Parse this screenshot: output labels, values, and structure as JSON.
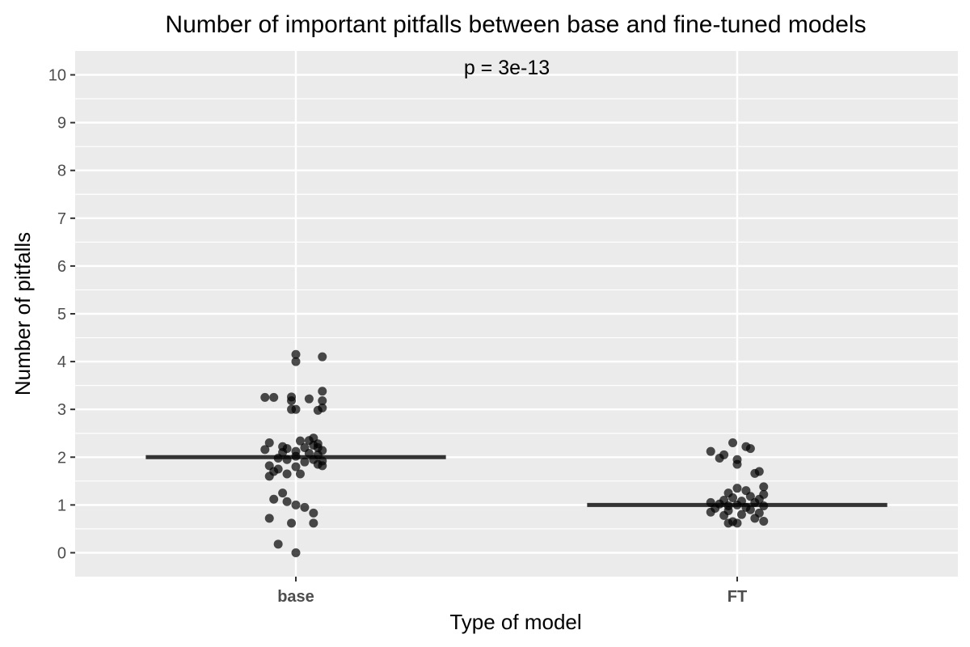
{
  "chart_data": {
    "type": "scatter",
    "title": "Number of important pitfalls between base and fine-tuned models",
    "annotation": "p = 3e-13",
    "xlabel": "Type of model",
    "ylabel": "Number of pitfalls",
    "categories": [
      "base",
      "FT"
    ],
    "ylim": [
      -0.5,
      10.5
    ],
    "yticks": [
      "0",
      "1",
      "2",
      "3",
      "4",
      "5",
      "6",
      "7",
      "8",
      "9",
      "10"
    ],
    "grid": true,
    "point_color": "#000000",
    "point_opacity": 0.7,
    "median_color": "#333333",
    "panel_color": "#ebebeb",
    "medians": [
      2,
      1
    ],
    "points": [
      {
        "category": "base",
        "jitter": 0.0,
        "y": 4.15
      },
      {
        "category": "base",
        "jitter": 0.06,
        "y": 4.1
      },
      {
        "category": "base",
        "jitter": 0.0,
        "y": 4.0
      },
      {
        "category": "base",
        "jitter": 0.06,
        "y": 3.38
      },
      {
        "category": "base",
        "jitter": -0.07,
        "y": 3.25
      },
      {
        "category": "base",
        "jitter": -0.05,
        "y": 3.25
      },
      {
        "category": "base",
        "jitter": -0.01,
        "y": 3.26
      },
      {
        "category": "base",
        "jitter": 0.03,
        "y": 3.22
      },
      {
        "category": "base",
        "jitter": 0.06,
        "y": 3.18
      },
      {
        "category": "base",
        "jitter": -0.01,
        "y": 3.18
      },
      {
        "category": "base",
        "jitter": -0.01,
        "y": 3.0
      },
      {
        "category": "base",
        "jitter": 0.0,
        "y": 3.0
      },
      {
        "category": "base",
        "jitter": 0.06,
        "y": 3.03
      },
      {
        "category": "base",
        "jitter": 0.05,
        "y": 2.98
      },
      {
        "category": "base",
        "jitter": 0.04,
        "y": 2.4
      },
      {
        "category": "base",
        "jitter": 0.03,
        "y": 2.35
      },
      {
        "category": "base",
        "jitter": 0.01,
        "y": 2.34
      },
      {
        "category": "base",
        "jitter": -0.06,
        "y": 2.3
      },
      {
        "category": "base",
        "jitter": 0.05,
        "y": 2.28
      },
      {
        "category": "base",
        "jitter": 0.04,
        "y": 2.25
      },
      {
        "category": "base",
        "jitter": -0.03,
        "y": 2.22
      },
      {
        "category": "base",
        "jitter": 0.05,
        "y": 2.2
      },
      {
        "category": "base",
        "jitter": 0.02,
        "y": 2.2
      },
      {
        "category": "base",
        "jitter": -0.02,
        "y": 2.18
      },
      {
        "category": "base",
        "jitter": -0.07,
        "y": 2.16
      },
      {
        "category": "base",
        "jitter": 0.06,
        "y": 2.14
      },
      {
        "category": "base",
        "jitter": 0.0,
        "y": 2.12
      },
      {
        "category": "base",
        "jitter": -0.03,
        "y": 2.1
      },
      {
        "category": "base",
        "jitter": 0.03,
        "y": 2.08
      },
      {
        "category": "base",
        "jitter": 0.05,
        "y": 2.05
      },
      {
        "category": "base",
        "jitter": 0.0,
        "y": 2.02
      },
      {
        "category": "base",
        "jitter": -0.04,
        "y": 1.98
      },
      {
        "category": "base",
        "jitter": -0.02,
        "y": 1.95
      },
      {
        "category": "base",
        "jitter": 0.04,
        "y": 1.95
      },
      {
        "category": "base",
        "jitter": 0.06,
        "y": 1.92
      },
      {
        "category": "base",
        "jitter": 0.02,
        "y": 1.9
      },
      {
        "category": "base",
        "jitter": 0.05,
        "y": 1.85
      },
      {
        "category": "base",
        "jitter": -0.06,
        "y": 1.82
      },
      {
        "category": "base",
        "jitter": 0.06,
        "y": 1.82
      },
      {
        "category": "base",
        "jitter": 0.0,
        "y": 1.8
      },
      {
        "category": "base",
        "jitter": -0.04,
        "y": 1.75
      },
      {
        "category": "base",
        "jitter": -0.05,
        "y": 1.7
      },
      {
        "category": "base",
        "jitter": -0.02,
        "y": 1.65
      },
      {
        "category": "base",
        "jitter": 0.01,
        "y": 1.65
      },
      {
        "category": "base",
        "jitter": -0.06,
        "y": 1.6
      },
      {
        "category": "base",
        "jitter": -0.03,
        "y": 1.25
      },
      {
        "category": "base",
        "jitter": -0.05,
        "y": 1.12
      },
      {
        "category": "base",
        "jitter": -0.02,
        "y": 1.07
      },
      {
        "category": "base",
        "jitter": 0.0,
        "y": 1.0
      },
      {
        "category": "base",
        "jitter": 0.02,
        "y": 0.95
      },
      {
        "category": "base",
        "jitter": 0.04,
        "y": 0.83
      },
      {
        "category": "base",
        "jitter": -0.06,
        "y": 0.72
      },
      {
        "category": "base",
        "jitter": -0.01,
        "y": 0.62
      },
      {
        "category": "base",
        "jitter": 0.04,
        "y": 0.62
      },
      {
        "category": "base",
        "jitter": -0.04,
        "y": 0.18
      },
      {
        "category": "base",
        "jitter": 0.0,
        "y": 0.0
      },
      {
        "category": "FT",
        "jitter": -0.01,
        "y": 2.3
      },
      {
        "category": "FT",
        "jitter": 0.02,
        "y": 2.22
      },
      {
        "category": "FT",
        "jitter": 0.03,
        "y": 2.18
      },
      {
        "category": "FT",
        "jitter": -0.06,
        "y": 2.12
      },
      {
        "category": "FT",
        "jitter": -0.03,
        "y": 2.05
      },
      {
        "category": "FT",
        "jitter": -0.04,
        "y": 1.98
      },
      {
        "category": "FT",
        "jitter": 0.0,
        "y": 1.95
      },
      {
        "category": "FT",
        "jitter": 0.0,
        "y": 1.85
      },
      {
        "category": "FT",
        "jitter": 0.05,
        "y": 1.7
      },
      {
        "category": "FT",
        "jitter": 0.04,
        "y": 1.66
      },
      {
        "category": "FT",
        "jitter": 0.06,
        "y": 1.38
      },
      {
        "category": "FT",
        "jitter": 0.0,
        "y": 1.35
      },
      {
        "category": "FT",
        "jitter": 0.02,
        "y": 1.3
      },
      {
        "category": "FT",
        "jitter": -0.02,
        "y": 1.25
      },
      {
        "category": "FT",
        "jitter": 0.06,
        "y": 1.22
      },
      {
        "category": "FT",
        "jitter": 0.03,
        "y": 1.18
      },
      {
        "category": "FT",
        "jitter": -0.01,
        "y": 1.15
      },
      {
        "category": "FT",
        "jitter": 0.05,
        "y": 1.12
      },
      {
        "category": "FT",
        "jitter": -0.03,
        "y": 1.1
      },
      {
        "category": "FT",
        "jitter": 0.01,
        "y": 1.08
      },
      {
        "category": "FT",
        "jitter": -0.06,
        "y": 1.05
      },
      {
        "category": "FT",
        "jitter": 0.04,
        "y": 1.05
      },
      {
        "category": "FT",
        "jitter": -0.04,
        "y": 1.02
      },
      {
        "category": "FT",
        "jitter": 0.0,
        "y": 1.0
      },
      {
        "category": "FT",
        "jitter": -0.02,
        "y": 0.98
      },
      {
        "category": "FT",
        "jitter": 0.06,
        "y": 0.98
      },
      {
        "category": "FT",
        "jitter": 0.02,
        "y": 0.95
      },
      {
        "category": "FT",
        "jitter": -0.05,
        "y": 0.93
      },
      {
        "category": "FT",
        "jitter": 0.03,
        "y": 0.9
      },
      {
        "category": "FT",
        "jitter": -0.02,
        "y": 0.88
      },
      {
        "category": "FT",
        "jitter": -0.06,
        "y": 0.85
      },
      {
        "category": "FT",
        "jitter": 0.05,
        "y": 0.83
      },
      {
        "category": "FT",
        "jitter": 0.01,
        "y": 0.8
      },
      {
        "category": "FT",
        "jitter": -0.03,
        "y": 0.78
      },
      {
        "category": "FT",
        "jitter": 0.04,
        "y": 0.72
      },
      {
        "category": "FT",
        "jitter": 0.06,
        "y": 0.66
      },
      {
        "category": "FT",
        "jitter": -0.01,
        "y": 0.65
      },
      {
        "category": "FT",
        "jitter": -0.02,
        "y": 0.62
      },
      {
        "category": "FT",
        "jitter": 0.0,
        "y": 0.62
      }
    ]
  }
}
